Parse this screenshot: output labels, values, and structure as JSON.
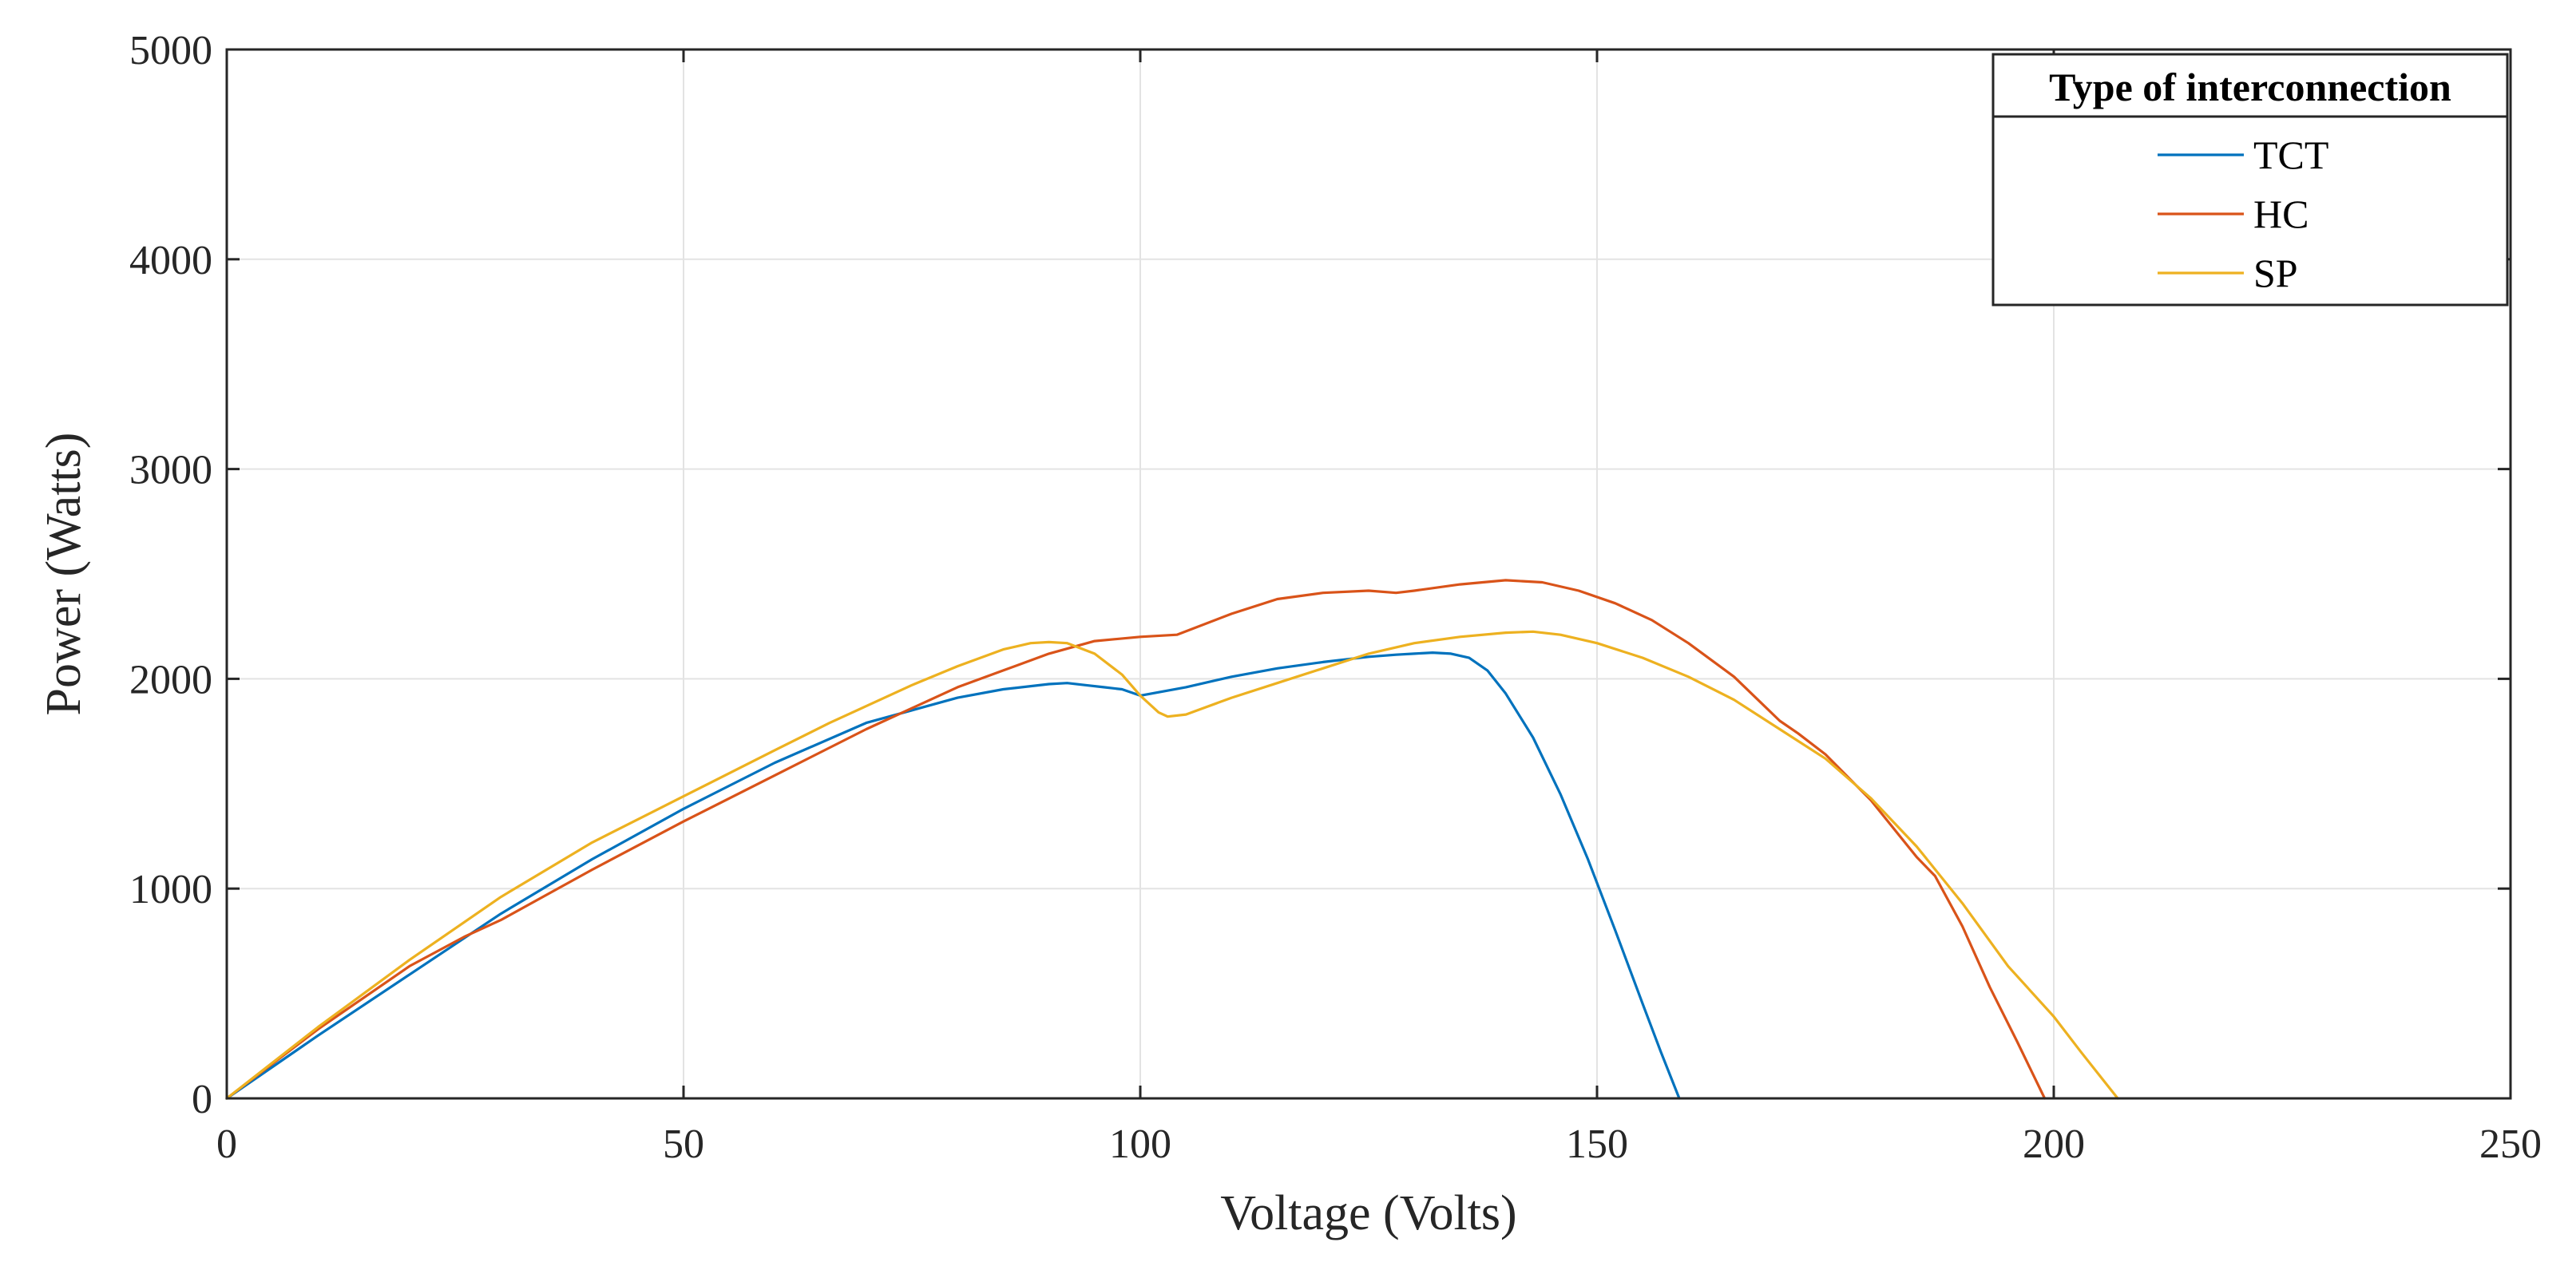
{
  "chart_data": {
    "type": "line",
    "title": "",
    "xlabel": "Voltage (Volts)",
    "ylabel": "Power (Watts)",
    "xlim": [
      0,
      250
    ],
    "ylim": [
      0,
      5000
    ],
    "xticks": [
      0,
      50,
      100,
      150,
      200,
      250
    ],
    "yticks": [
      0,
      1000,
      2000,
      3000,
      4000,
      5000
    ],
    "grid": true,
    "legend": {
      "title": "Type of interconnection",
      "placement": "top-right"
    },
    "series": [
      {
        "name": "TCT",
        "color": "#0072BD",
        "x": [
          0,
          10,
          20,
          30,
          40,
          50,
          60,
          70,
          80,
          85,
          90,
          92,
          94,
          96,
          98,
          100,
          105,
          110,
          115,
          120,
          125,
          128,
          130,
          132,
          134,
          136,
          138,
          140,
          143,
          146,
          149,
          152,
          155,
          157,
          159
        ],
        "y": [
          0,
          300,
          590,
          880,
          1140,
          1380,
          1600,
          1790,
          1910,
          1950,
          1975,
          1980,
          1970,
          1960,
          1950,
          1920,
          1960,
          2010,
          2050,
          2080,
          2105,
          2115,
          2120,
          2125,
          2120,
          2100,
          2040,
          1930,
          1720,
          1450,
          1140,
          800,
          450,
          220,
          0
        ]
      },
      {
        "name": "HC",
        "color": "#D95319",
        "x": [
          0,
          10,
          20,
          26,
          30,
          40,
          50,
          60,
          70,
          80,
          85,
          90,
          95,
          100,
          104,
          110,
          115,
          120,
          125,
          128,
          130,
          135,
          140,
          144,
          148,
          152,
          156,
          160,
          165,
          170,
          172,
          175,
          180,
          185,
          187,
          190,
          193,
          196,
          199
        ],
        "y": [
          0,
          330,
          630,
          770,
          850,
          1090,
          1320,
          1540,
          1760,
          1960,
          2040,
          2120,
          2180,
          2200,
          2210,
          2310,
          2380,
          2410,
          2420,
          2410,
          2420,
          2450,
          2470,
          2460,
          2420,
          2360,
          2280,
          2170,
          2010,
          1800,
          1740,
          1640,
          1420,
          1150,
          1060,
          820,
          530,
          270,
          0
        ]
      },
      {
        "name": "SP",
        "color": "#EDB120",
        "x": [
          0,
          10,
          20,
          30,
          40,
          50,
          60,
          66,
          70,
          75,
          80,
          85,
          88,
          90,
          92,
          95,
          98,
          100,
          102,
          103,
          105,
          110,
          115,
          120,
          125,
          130,
          135,
          140,
          143,
          146,
          150,
          155,
          160,
          165,
          170,
          175,
          180,
          185,
          190,
          195,
          200,
          203,
          205,
          207
        ],
        "y": [
          0,
          340,
          660,
          960,
          1220,
          1440,
          1660,
          1790,
          1870,
          1970,
          2060,
          2140,
          2170,
          2175,
          2170,
          2120,
          2020,
          1920,
          1840,
          1820,
          1830,
          1910,
          1980,
          2050,
          2120,
          2170,
          2200,
          2220,
          2225,
          2210,
          2170,
          2100,
          2010,
          1900,
          1760,
          1620,
          1430,
          1200,
          930,
          630,
          390,
          220,
          110,
          0
        ]
      }
    ]
  }
}
